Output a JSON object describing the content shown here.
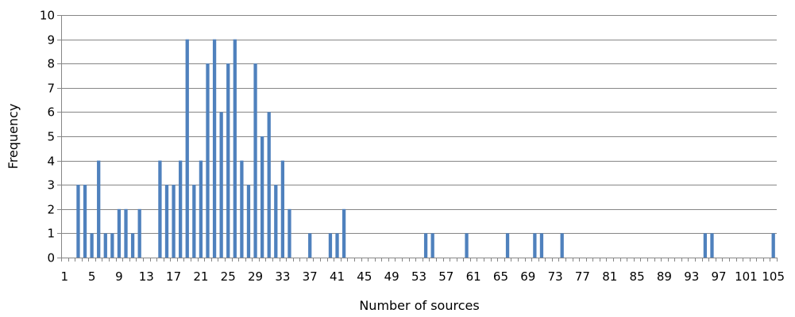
{
  "chart_data": {
    "type": "bar",
    "title": "",
    "xlabel": "Number of sources",
    "ylabel": "Frequency",
    "ylim": [
      0,
      10
    ],
    "yticks": [
      0,
      1,
      2,
      3,
      4,
      5,
      6,
      7,
      8,
      9,
      10
    ],
    "grid": true,
    "legend": "none",
    "bar_color": "#4F81BD",
    "grid_color": "#868686",
    "xtick_labels": [
      "1",
      "5",
      "9",
      "13",
      "17",
      "21",
      "25",
      "29",
      "33",
      "37",
      "41",
      "45",
      "49",
      "53",
      "57",
      "61",
      "65",
      "69",
      "73",
      "77",
      "81",
      "85",
      "89",
      "93",
      "97",
      "101",
      "105"
    ],
    "x": [
      1,
      2,
      3,
      4,
      5,
      6,
      7,
      8,
      9,
      10,
      11,
      12,
      13,
      14,
      15,
      16,
      17,
      18,
      19,
      20,
      21,
      22,
      23,
      24,
      25,
      26,
      27,
      28,
      29,
      30,
      31,
      32,
      33,
      34,
      35,
      36,
      37,
      38,
      39,
      40,
      41,
      42,
      43,
      44,
      45,
      46,
      47,
      48,
      49,
      50,
      51,
      52,
      53,
      54,
      55,
      56,
      57,
      58,
      59,
      60,
      61,
      62,
      63,
      64,
      65,
      66,
      67,
      68,
      69,
      70,
      71,
      72,
      73,
      74,
      75,
      76,
      77,
      78,
      79,
      80,
      81,
      82,
      83,
      84,
      85,
      86,
      87,
      88,
      89,
      90,
      91,
      92,
      93,
      94,
      95,
      96,
      97,
      98,
      99,
      100,
      101,
      102,
      103,
      104,
      105
    ],
    "values": [
      0,
      0,
      3,
      3,
      1,
      4,
      1,
      1,
      2,
      2,
      1,
      2,
      0,
      0,
      4,
      3,
      3,
      4,
      9,
      3,
      4,
      8,
      9,
      6,
      8,
      9,
      4,
      3,
      8,
      5,
      6,
      3,
      4,
      2,
      0,
      0,
      1,
      0,
      0,
      1,
      1,
      2,
      0,
      0,
      0,
      0,
      0,
      0,
      0,
      0,
      0,
      0,
      0,
      1,
      1,
      0,
      0,
      0,
      0,
      1,
      0,
      0,
      0,
      0,
      0,
      1,
      0,
      0,
      0,
      1,
      1,
      0,
      0,
      1,
      0,
      0,
      0,
      0,
      0,
      0,
      0,
      0,
      0,
      0,
      0,
      0,
      0,
      0,
      0,
      0,
      0,
      0,
      0,
      0,
      1,
      1,
      0,
      0,
      0,
      0,
      0,
      0,
      0,
      0,
      1
    ]
  }
}
